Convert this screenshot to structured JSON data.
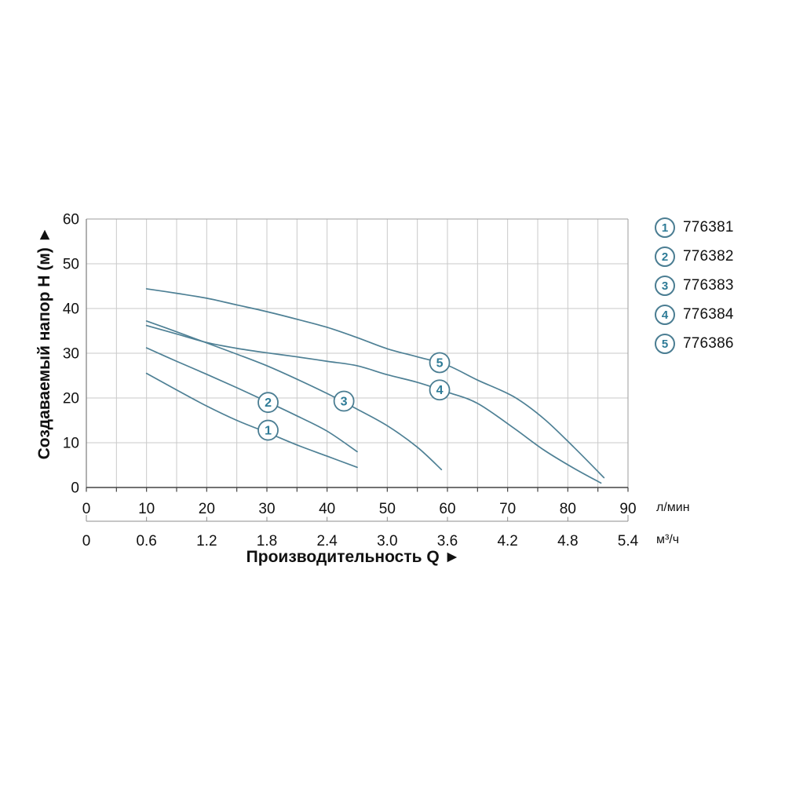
{
  "chart_data": {
    "type": "line",
    "title": "",
    "xlabel": "Производительность Q ►",
    "ylabel": "Создаваемый напор H (м) ►",
    "x_axis": {
      "primary_unit": "л/мин",
      "primary_ticks": [
        0,
        10,
        20,
        30,
        40,
        50,
        60,
        70,
        80,
        90
      ],
      "secondary_unit": "м³/ч",
      "secondary_ticks": [
        "0",
        "0.6",
        "1.2",
        "1.8",
        "2.4",
        "3.0",
        "3.6",
        "4.2",
        "4.8",
        "5.4"
      ],
      "min": 0,
      "max": 90,
      "grid_step": 5
    },
    "y_axis": {
      "ticks": [
        0,
        10,
        20,
        30,
        40,
        50,
        60
      ],
      "min": 0,
      "max": 60,
      "grid_step": 10
    },
    "legend_position": "right",
    "grid": true,
    "series": [
      {
        "num": "1",
        "article": "776381",
        "marker_at": [
          30.2,
          12.8
        ],
        "points": [
          [
            10,
            25.5
          ],
          [
            15,
            21.8
          ],
          [
            20,
            18.2
          ],
          [
            25,
            15.0
          ],
          [
            30,
            12.3
          ],
          [
            35,
            9.5
          ],
          [
            40,
            7.0
          ],
          [
            45,
            4.5
          ]
        ]
      },
      {
        "num": "2",
        "article": "776382",
        "marker_at": [
          30.2,
          19.0
        ],
        "points": [
          [
            10,
            31.2
          ],
          [
            15,
            28.2
          ],
          [
            20,
            25.3
          ],
          [
            25,
            22.3
          ],
          [
            30,
            19.2
          ],
          [
            35,
            16.0
          ],
          [
            40,
            12.6
          ],
          [
            45,
            8.0
          ]
        ]
      },
      {
        "num": "3",
        "article": "776383",
        "marker_at": [
          42.8,
          19.3
        ],
        "points": [
          [
            10,
            37.2
          ],
          [
            15,
            34.8
          ],
          [
            20,
            32.3
          ],
          [
            25,
            29.8
          ],
          [
            30,
            27.2
          ],
          [
            35,
            24.2
          ],
          [
            40,
            21.0
          ],
          [
            45,
            17.5
          ],
          [
            50,
            13.8
          ],
          [
            55,
            9.0
          ],
          [
            59,
            4.0
          ]
        ]
      },
      {
        "num": "4",
        "article": "776384",
        "marker_at": [
          58.7,
          21.8
        ],
        "points": [
          [
            10,
            36.2
          ],
          [
            15,
            34.3
          ],
          [
            20,
            32.4
          ],
          [
            25,
            31.1
          ],
          [
            30,
            30.1
          ],
          [
            35,
            29.2
          ],
          [
            40,
            28.2
          ],
          [
            45,
            27.2
          ],
          [
            50,
            25.2
          ],
          [
            55,
            23.5
          ],
          [
            60,
            21.3
          ],
          [
            65,
            18.8
          ],
          [
            71,
            13.3
          ],
          [
            76,
            8.4
          ],
          [
            81,
            4.3
          ],
          [
            85.5,
            1.0
          ]
        ]
      },
      {
        "num": "5",
        "article": "776386",
        "marker_at": [
          58.7,
          27.9
        ],
        "points": [
          [
            10,
            44.4
          ],
          [
            15,
            43.4
          ],
          [
            20,
            42.3
          ],
          [
            25,
            40.8
          ],
          [
            30,
            39.3
          ],
          [
            35,
            37.6
          ],
          [
            40,
            35.8
          ],
          [
            45,
            33.5
          ],
          [
            50,
            31.0
          ],
          [
            55,
            29.2
          ],
          [
            60,
            27.3
          ],
          [
            65,
            24.0
          ],
          [
            71,
            20.3
          ],
          [
            76,
            15.4
          ],
          [
            81,
            9.0
          ],
          [
            86,
            2.2
          ]
        ]
      }
    ],
    "colors": {
      "curve": "#4e8095",
      "marker_circle": "#4a7d92",
      "marker_number": "#2e7b97",
      "grid": "#c9c9c9",
      "border": "#9e9e9e",
      "axis": "#444444",
      "text": "#111111"
    }
  },
  "legend": {
    "items": [
      {
        "num": "1",
        "label": "776381"
      },
      {
        "num": "2",
        "label": "776382"
      },
      {
        "num": "3",
        "label": "776383"
      },
      {
        "num": "4",
        "label": "776384"
      },
      {
        "num": "5",
        "label": "776386"
      }
    ]
  }
}
